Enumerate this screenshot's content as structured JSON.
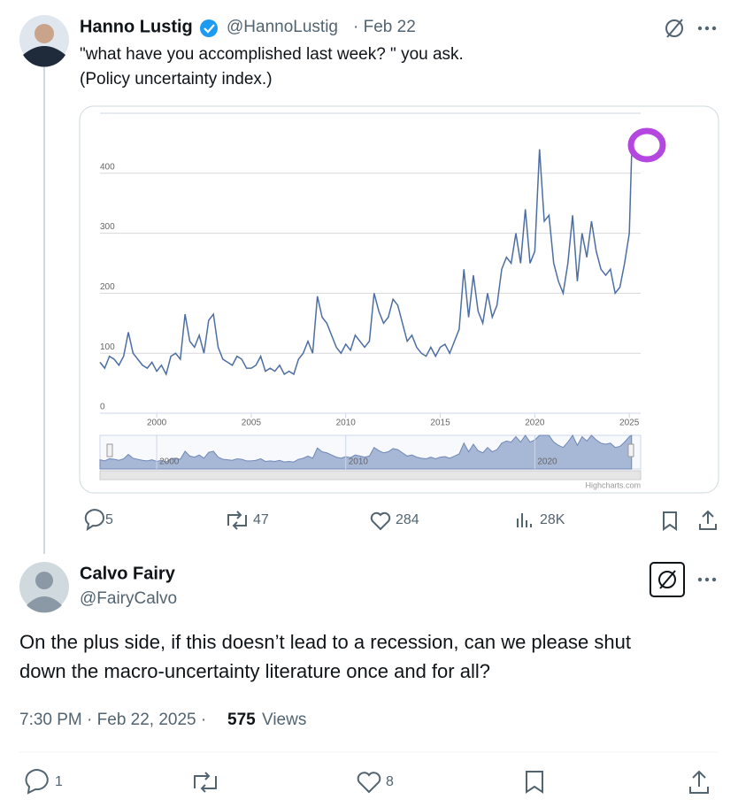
{
  "tweet": {
    "author": "Hanno Lustig",
    "handle": "@HannoLustig",
    "date": "· Feb 22",
    "text": [
      "\"what have you accomplished last week? \" you ask.",
      "(Policy uncertainty index.)"
    ],
    "replies": "5",
    "reposts": "47",
    "likes": "284",
    "views": "28K"
  },
  "reply": {
    "author": "Calvo Fairy",
    "handle": "@FairyCalvo",
    "text": [
      "On the plus side, if this doesn’t lead to a recession, can we please shut",
      "down the macro-uncertainty literature once and for all?"
    ],
    "timestamp": "7:30 PM · Feb 22, 2025 ·",
    "view_count": "575",
    "views_label": "Views",
    "replies": "1",
    "likes": "8"
  },
  "chart_data": {
    "type": "line",
    "color": "#4d6ea3",
    "grid": true,
    "xlim": [
      1997,
      2025.6
    ],
    "xticks": [
      2000,
      2005,
      2010,
      2015,
      2020,
      2025
    ],
    "ylim": [
      0,
      500
    ],
    "yticks": [
      0,
      100,
      200,
      300,
      400
    ],
    "x": [
      1997,
      1997.25,
      1997.5,
      1997.75,
      1998,
      1998.25,
      1998.5,
      1998.75,
      1999,
      1999.25,
      1999.5,
      1999.75,
      2000,
      2000.25,
      2000.5,
      2000.75,
      2001,
      2001.25,
      2001.5,
      2001.75,
      2002,
      2002.25,
      2002.5,
      2002.75,
      2003,
      2003.25,
      2003.5,
      2003.75,
      2004,
      2004.25,
      2004.5,
      2004.75,
      2005,
      2005.25,
      2005.5,
      2005.75,
      2006,
      2006.25,
      2006.5,
      2006.75,
      2007,
      2007.25,
      2007.5,
      2007.75,
      2008,
      2008.25,
      2008.5,
      2008.75,
      2009,
      2009.25,
      2009.5,
      2009.75,
      2010,
      2010.25,
      2010.5,
      2010.75,
      2011,
      2011.25,
      2011.5,
      2011.75,
      2012,
      2012.25,
      2012.5,
      2012.75,
      2013,
      2013.25,
      2013.5,
      2013.75,
      2014,
      2014.25,
      2014.5,
      2014.75,
      2015,
      2015.25,
      2015.5,
      2015.75,
      2016,
      2016.25,
      2016.5,
      2016.75,
      2017,
      2017.25,
      2017.5,
      2017.75,
      2018,
      2018.25,
      2018.5,
      2018.75,
      2019,
      2019.25,
      2019.5,
      2019.75,
      2020,
      2020.25,
      2020.5,
      2020.75,
      2021,
      2021.25,
      2021.5,
      2021.75,
      2022,
      2022.25,
      2022.5,
      2022.75,
      2023,
      2023.25,
      2023.5,
      2023.75,
      2024,
      2024.25,
      2024.5,
      2024.75,
      2025,
      2025.12
    ],
    "series": [
      {
        "values": [
          85,
          75,
          95,
          90,
          80,
          95,
          135,
          100,
          90,
          80,
          75,
          85,
          70,
          80,
          65,
          95,
          100,
          90,
          165,
          120,
          110,
          130,
          100,
          155,
          165,
          110,
          90,
          85,
          80,
          95,
          90,
          75,
          75,
          80,
          95,
          70,
          75,
          70,
          80,
          65,
          70,
          65,
          90,
          100,
          120,
          100,
          195,
          160,
          150,
          130,
          110,
          100,
          115,
          105,
          130,
          120,
          110,
          120,
          200,
          170,
          150,
          160,
          190,
          180,
          150,
          120,
          130,
          110,
          100,
          95,
          110,
          95,
          110,
          115,
          100,
          120,
          140,
          240,
          160,
          230,
          170,
          150,
          200,
          160,
          180,
          240,
          260,
          250,
          300,
          250,
          340,
          250,
          270,
          440,
          320,
          330,
          250,
          220,
          200,
          250,
          330,
          220,
          300,
          260,
          320,
          270,
          240,
          230,
          240,
          200,
          210,
          250,
          300,
          430
        ]
      }
    ],
    "navigator_ticks": [
      2000,
      2010,
      2020
    ],
    "credit": "Highcharts.com"
  }
}
